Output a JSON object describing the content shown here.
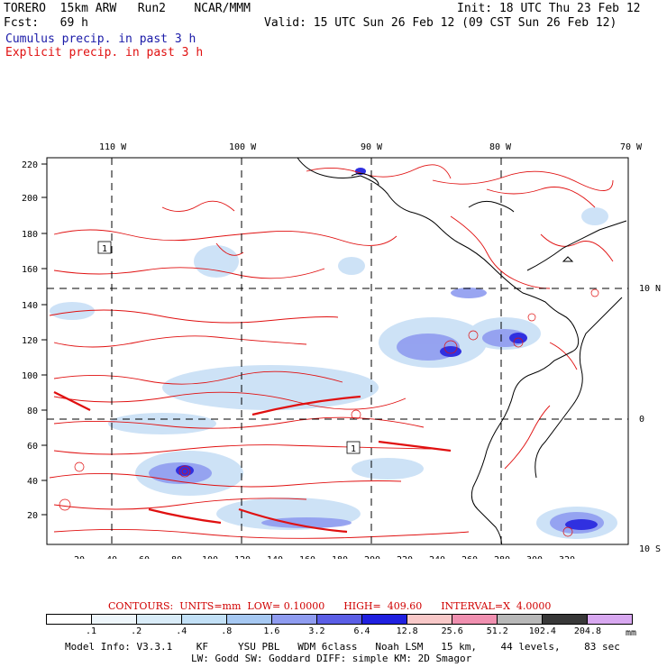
{
  "header": {
    "title": "TORERO  15km ARW   Run2    NCAR/MMM",
    "init": "Init: 18 UTC Thu 23 Feb 12",
    "fcst": "Fcst:   69 h",
    "valid": "Valid: 15 UTC Sun 26 Feb 12 (09 CST Sun 26 Feb 12)",
    "cumulus_label": "Cumulus precip. in past 3 h",
    "explicit_label": "Explicit precip. in past 3 h"
  },
  "colors": {
    "cumulus": "#1a1aa8",
    "explicit": "#e01010",
    "coast": "#000000"
  },
  "map": {
    "top_labels": [
      "110 W",
      "100 W",
      "90 W",
      "80 W",
      "70 W"
    ],
    "right_labels": [
      "10 N",
      "0",
      "10 S"
    ],
    "y_ticks": [
      "220",
      "200",
      "180",
      "160",
      "140",
      "120",
      "100",
      "80",
      "60",
      "40",
      "20"
    ],
    "x_ticks": [
      "20",
      "40",
      "60",
      "80",
      "100",
      "120",
      "140",
      "160",
      "180",
      "200",
      "220",
      "240",
      "260",
      "280",
      "300",
      "320"
    ],
    "box_labels": [
      "1",
      "1"
    ]
  },
  "legend": {
    "contour_info": "CONTOURS:  UNITS=mm  LOW= 0.10000      HIGH=  409.60      INTERVAL=X  4.0000",
    "colors": [
      "#ffffff",
      "#eef6fb",
      "#d9ecf8",
      "#c2e0f6",
      "#a6c8f2",
      "#8f9cf0",
      "#5b5ee6",
      "#2020e0",
      "#f8c8c8",
      "#f090b0",
      "#b8b8b8",
      "#383838",
      "#d8a8f0"
    ],
    "labels": [
      ".1",
      ".2",
      ".4",
      ".8",
      "1.6",
      "3.2",
      "6.4",
      "12.8",
      "25.6",
      "51.2",
      "102.4",
      "204.8"
    ],
    "unit": "mm"
  },
  "model_info": {
    "line1": "Model Info: V3.3.1    KF     YSU PBL   WDM 6class   Noah LSM   15 km,    44 levels,    83 sec",
    "line2": "LW: Godd SW: Goddard DIFF: simple KM: 2D Smagor"
  }
}
